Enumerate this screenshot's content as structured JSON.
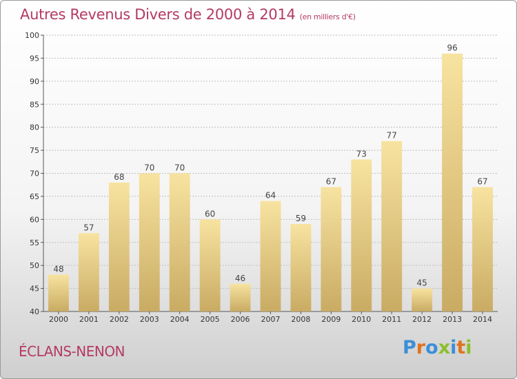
{
  "header": {
    "title": "Autres Revenus Divers de 2000 à 2014",
    "unit": "(en milliers d'€)"
  },
  "footer": {
    "commune": "ÉCLANS-NENON",
    "logo_text": "Proxiti"
  },
  "colors": {
    "title": "#b43a63",
    "bar_light": "#f7e3a0",
    "bar_dark": "#c9ab63",
    "logo_letters": [
      "#3b8fd8",
      "#e0731f",
      "#3b8fd8",
      "#8cbf2c",
      "#3b8fd8",
      "#e0731f",
      "#8cbf2c"
    ]
  },
  "chart_data": {
    "type": "bar",
    "categories": [
      "2000",
      "2001",
      "2002",
      "2003",
      "2004",
      "2005",
      "2006",
      "2007",
      "2008",
      "2009",
      "2010",
      "2011",
      "2012",
      "2013",
      "2014"
    ],
    "values": [
      48,
      57,
      68,
      70,
      70,
      60,
      46,
      64,
      59,
      67,
      73,
      77,
      45,
      96,
      67
    ],
    "title": "Autres Revenus Divers de 2000 à 2014",
    "subtitle": "(en milliers d'€)",
    "xlabel": "",
    "ylabel": "",
    "ylim": [
      40,
      100
    ],
    "yticks": [
      40,
      45,
      50,
      55,
      60,
      65,
      70,
      75,
      80,
      85,
      90,
      95,
      100
    ],
    "grid": true,
    "data_labels": true
  }
}
